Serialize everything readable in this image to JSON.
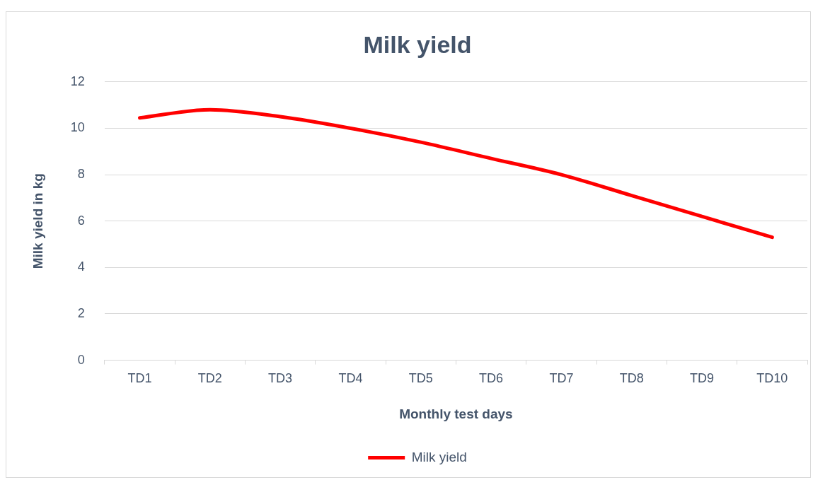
{
  "chart_data": {
    "type": "line",
    "title": "Milk yield",
    "xlabel": "Monthly test days",
    "ylabel": "Milk yield in kg",
    "categories": [
      "TD1",
      "TD2",
      "TD3",
      "TD4",
      "TD5",
      "TD6",
      "TD7",
      "TD8",
      "TD9",
      "TD10"
    ],
    "series": [
      {
        "name": "Milk yield",
        "color": "#ff0000",
        "values": [
          10.45,
          10.8,
          10.5,
          10.0,
          9.4,
          8.7,
          8.0,
          7.1,
          6.2,
          5.3
        ]
      }
    ],
    "ylim": [
      0,
      12
    ],
    "yticks": [
      0,
      2,
      4,
      6,
      8,
      10,
      12
    ],
    "grid": "y",
    "legend": "bottom",
    "marker": "none",
    "line_style": "solid"
  }
}
